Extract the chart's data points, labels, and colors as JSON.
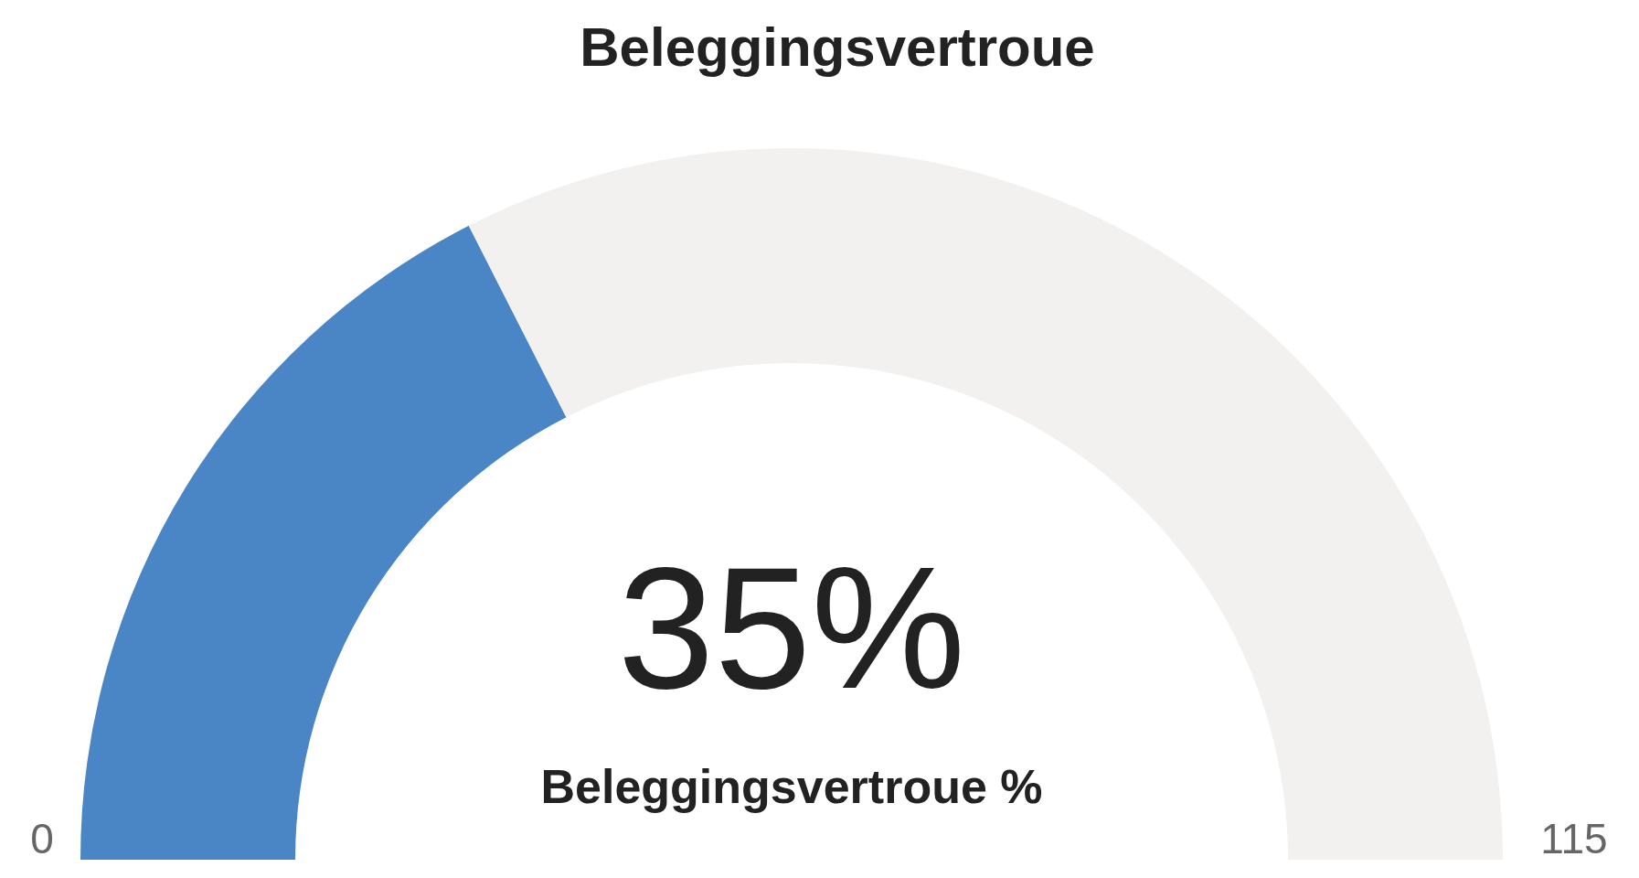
{
  "chart_data": {
    "type": "donut",
    "title": "Beleggingsvertroue",
    "categories": [
      null,
      null
    ],
    "values": [
      35,
      65
    ],
    "colors": [
      "#4a86c5",
      "#f2f1f0"
    ],
    "annotations": [
      "35%",
      "Beleggingsvertroue %",
      "0",
      "115"
    ]
  }
}
